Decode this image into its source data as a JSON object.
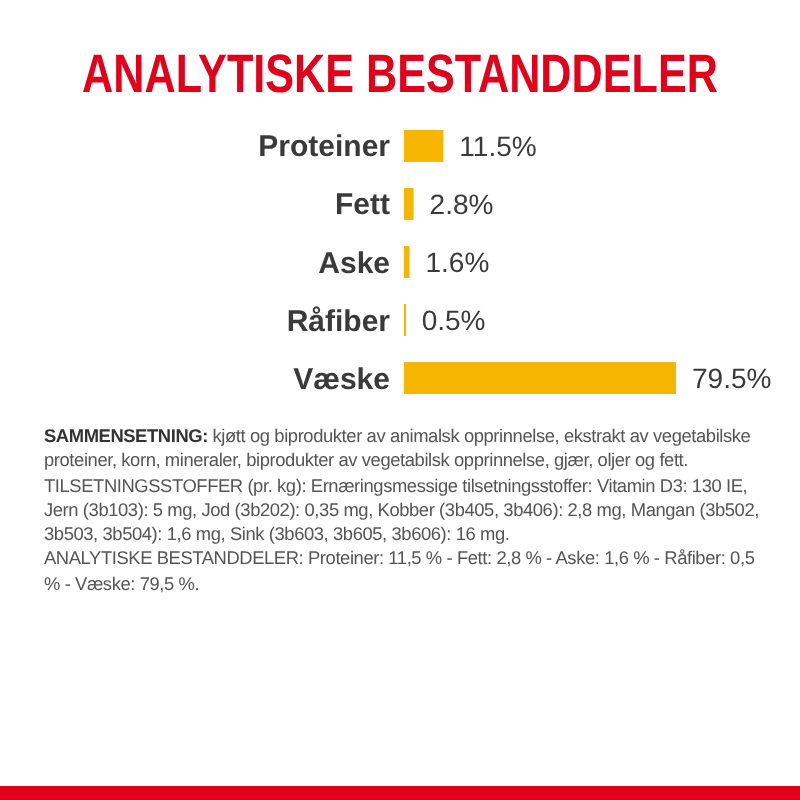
{
  "chart_data": {
    "type": "bar",
    "orientation": "horizontal",
    "title": "ANALYTISKE BESTANDDELER",
    "categories": [
      "Proteiner",
      "Fett",
      "Aske",
      "Råfiber",
      "Væske"
    ],
    "values": [
      11.5,
      2.8,
      1.6,
      0.5,
      79.5
    ],
    "value_labels": [
      "11.5%",
      "2.8%",
      "1.6%",
      "0.5%",
      "79.5%"
    ],
    "color": "#f6b500",
    "annotations": [
      "SAMMENSETNING: kjøtt og biprodukter av animalsk opprinnelse, ekstrakt av vegetabilske proteiner, korn, mineraler, biprodukter av vegetabilsk opprinnelse, gjær, oljer og fett.",
      "TILSETNINGSSTOFFER (pr. kg): Ernæringsmessige tilsetningsstoffer: Vitamin D3: 130 IE, Jern (3b103): 5 mg, Jod (3b202): 0,35 mg, Kobber (3b405, 3b406): 2,8 mg, Mangan (3b502, 3b503, 3b504): 1,6 mg, Sink (3b603, 3b605, 3b606): 16 mg.",
      "ANALYTISKE BESTANDDELER: Proteiner: 11,5 % - Fett: 2,8 % - Aske: 1,6 % - Råfiber: 0,5 % - Væske: 79,5 %."
    ]
  }
}
